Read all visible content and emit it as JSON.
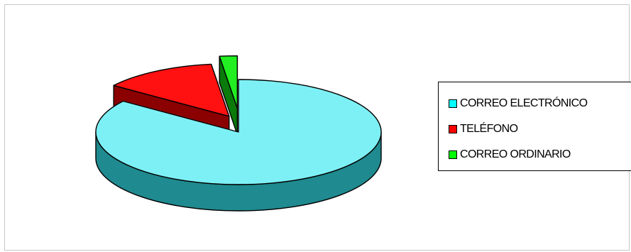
{
  "chart_data": {
    "type": "pie",
    "style": "3d-exploded",
    "title": "",
    "categories": [
      "CORREO ELECTRÓNICO",
      "TELÉFONO",
      "CORREO ORDINARIO"
    ],
    "values": [
      85,
      13,
      2
    ],
    "colors": {
      "CORREO ELECTRÓNICO": {
        "top": "#7df0f5",
        "side": "#1f8a8f"
      },
      "TELÉFONO": {
        "top": "#ff1111",
        "side": "#8b0000"
      },
      "CORREO ORDINARIO": {
        "top": "#22ee22",
        "side": "#0a7a0a"
      }
    },
    "legend_position": "right",
    "exploded": true
  },
  "legend": {
    "items": [
      {
        "label": "CORREO ELECTRÓNICO",
        "color": "#00ffff"
      },
      {
        "label": "TELÉFONO",
        "color": "#ff0000"
      },
      {
        "label": "CORREO ORDINARIO",
        "color": "#00ff00"
      }
    ]
  }
}
